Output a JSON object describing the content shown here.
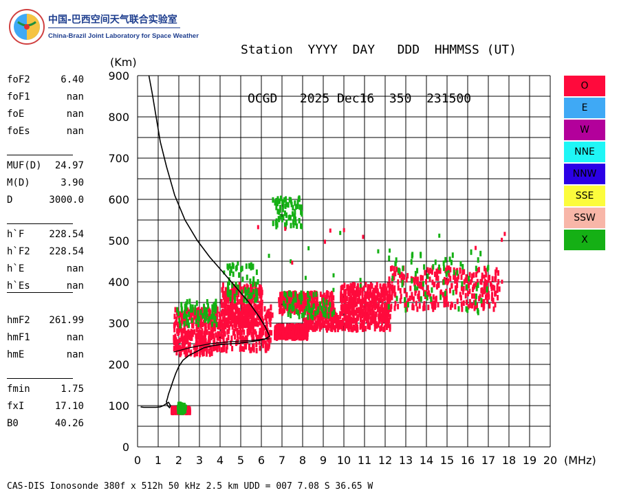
{
  "logo": {
    "cn": "中国-巴西空间天气联合实验室",
    "en": "China-Brazil Joint Laboratory for Space Weather"
  },
  "header": {
    "line1": "Station  YYYY  DAY   DDD  HHMMSS (UT)",
    "line2": "OCGD   2025 Dec16  350  231500"
  },
  "params": [
    {
      "label": "foF2",
      "value": "6.40"
    },
    {
      "label": "foF1",
      "value": "nan"
    },
    {
      "label": "foE",
      "value": "nan"
    },
    {
      "label": "foEs",
      "value": "nan"
    },
    {
      "label": "MUF(D)",
      "value": "24.97"
    },
    {
      "label": "M(D)",
      "value": "3.90"
    },
    {
      "label": "D",
      "value": "3000.0"
    },
    {
      "label": "h`F",
      "value": "228.54"
    },
    {
      "label": "h`F2",
      "value": "228.54"
    },
    {
      "label": "h`E",
      "value": "nan"
    },
    {
      "label": "h`Es",
      "value": "nan"
    },
    {
      "label": "hmF2",
      "value": "261.99"
    },
    {
      "label": "hmF1",
      "value": "nan"
    },
    {
      "label": "hmE",
      "value": "nan"
    },
    {
      "label": "fmin",
      "value": "1.75"
    },
    {
      "label": "fxI",
      "value": "17.10"
    },
    {
      "label": "B0",
      "value": "40.26"
    }
  ],
  "legend": [
    {
      "label": "O",
      "color": "#ff0a3c"
    },
    {
      "label": "E",
      "color": "#3fa9f5"
    },
    {
      "label": "W",
      "color": "#b3009b"
    },
    {
      "label": "NNE",
      "color": "#1ff6f6"
    },
    {
      "label": "NNW",
      "color": "#2b00e6"
    },
    {
      "label": "SSE",
      "color": "#fcfc3c"
    },
    {
      "label": "SSW",
      "color": "#f8b6a8"
    },
    {
      "label": "X",
      "color": "#15b015"
    }
  ],
  "footer": "CAS-DIS Ionosonde 380f x 512h 50 kHz 2.5 km UDD = 007 7.08 S 36.65 W",
  "chart_data": {
    "type": "scatter",
    "xlabel": "(MHz)",
    "ylabel": "(Km)",
    "xlim": [
      0,
      20
    ],
    "ylim": [
      0,
      900
    ],
    "x_ticks": [
      0,
      1,
      2,
      3,
      4,
      5,
      6,
      7,
      8,
      9,
      10,
      11,
      12,
      13,
      14,
      15,
      16,
      17,
      18,
      19,
      20
    ],
    "y_ticks": [
      0,
      100,
      200,
      300,
      400,
      500,
      600,
      700,
      800,
      900
    ],
    "grid": true,
    "profile": {
      "x": [
        0.55,
        0.7,
        0.9,
        1.1,
        1.4,
        1.8,
        2.3,
        2.9,
        3.5,
        4.2,
        4.8,
        5.4,
        5.9,
        6.2,
        6.4,
        6.2,
        5.9,
        5.5,
        5.0,
        4.5,
        4.0,
        3.6,
        3.2,
        2.9,
        2.5,
        2.2,
        2.0,
        1.85,
        1.72,
        1.6,
        1.5,
        1.45,
        1.4,
        1.45,
        1.55,
        1.6,
        1.5,
        1.4,
        1.25,
        1.1,
        0.9,
        0.55,
        0.3,
        0.15
      ],
      "y": [
        900,
        860,
        800,
        740,
        680,
        610,
        550,
        500,
        460,
        420,
        385,
        350,
        315,
        290,
        268,
        262,
        258,
        255,
        252,
        250,
        248,
        245,
        240,
        232,
        222,
        210,
        195,
        178,
        160,
        142,
        128,
        118,
        110,
        100,
        95,
        100,
        108,
        105,
        100,
        97,
        96,
        96,
        96,
        97
      ]
    },
    "x_trace": {
      "x": [
        1.75,
        2.5,
        3.5,
        4.5,
        5.5,
        6.1,
        6.4
      ],
      "y": [
        230,
        240,
        250,
        255,
        258,
        261,
        262
      ]
    },
    "echo_regions_O": [
      {
        "x": [
          1.7,
          3.6
        ],
        "y": [
          230,
          340
        ]
      },
      {
        "x": [
          3.6,
          6.5
        ],
        "y": [
          240,
          350
        ]
      },
      {
        "x": [
          4.0,
          6.0
        ],
        "y": [
          300,
          400
        ]
      },
      {
        "x": [
          6.6,
          8.2
        ],
        "y": [
          270,
          300
        ]
      },
      {
        "x": [
          6.8,
          9.5
        ],
        "y": [
          330,
          380
        ]
      },
      {
        "x": [
          8.0,
          12.2
        ],
        "y": [
          290,
          330
        ]
      },
      {
        "x": [
          9.8,
          12.2
        ],
        "y": [
          330,
          400
        ]
      },
      {
        "x": [
          12.1,
          17.5
        ],
        "y": [
          340,
          440
        ]
      },
      {
        "x": [
          1.6,
          2.5
        ],
        "y": [
          90,
          100
        ]
      }
    ],
    "echo_regions_X": [
      {
        "x": [
          1.8,
          3.8
        ],
        "y": [
          300,
          360
        ]
      },
      {
        "x": [
          4.3,
          5.8
        ],
        "y": [
          360,
          450
        ]
      },
      {
        "x": [
          6.5,
          8.0
        ],
        "y": [
          540,
          610
        ]
      },
      {
        "x": [
          7.0,
          9.5
        ],
        "y": [
          320,
          380
        ]
      },
      {
        "x": [
          12.0,
          17.0
        ],
        "y": [
          330,
          480
        ]
      },
      {
        "x": [
          1.9,
          2.3
        ],
        "y": [
          90,
          110
        ]
      }
    ]
  }
}
